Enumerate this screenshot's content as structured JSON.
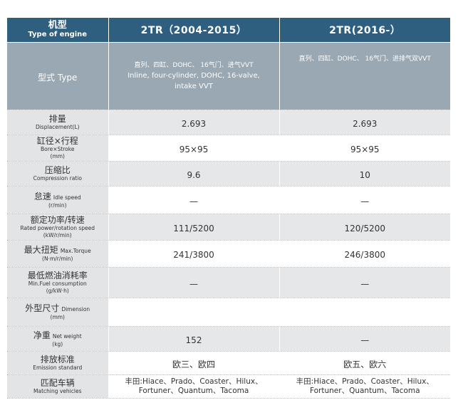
{
  "header": {
    "label_zh": "机型",
    "label_en": "Type of engine",
    "model_a": "2TR（2004-2015）",
    "model_b": "2TR(2016-）"
  },
  "type_row": {
    "label": "型式 Type",
    "a_zh": "直列、四缸、DOHC、 16气门、进气VVT",
    "a_en_1": "Inline, four-cylinder, DOHC, 16-valve,",
    "a_en_2": "intake VVT",
    "b_zh": "直列、四缸、DOHC、 16气门、进排气双VVT"
  },
  "rows": [
    {
      "zh": "排量",
      "en_inline": "",
      "en": "Displacement(L)",
      "unit": "",
      "a": "2.693",
      "b": "2.693"
    },
    {
      "zh": "缸径×行程",
      "en_inline": "",
      "en": "Bore×Stroke",
      "unit": "(mm)",
      "a": "95×95",
      "b": "95×95"
    },
    {
      "zh": "压缩比",
      "en_inline": "",
      "en": "Compression ratio",
      "unit": "",
      "a": "9.6",
      "b": "10"
    },
    {
      "zh": "怠速",
      "en_inline": "Idle speed",
      "en": "",
      "unit": "(r/min)",
      "a": "—",
      "b": "—"
    },
    {
      "zh": "额定功率/转速",
      "en_inline": "",
      "en": "Rated power/rotation speed",
      "unit": "(kW/r/min)",
      "a": "111/5200",
      "b": "120/5200"
    },
    {
      "zh": "最大扭矩",
      "en_inline": "Max.Torque",
      "en": "",
      "unit": "(N·m/r/min)",
      "a": "241/3800",
      "b": "246/3800"
    },
    {
      "zh": "最低燃油消耗率",
      "en_inline": "",
      "en": "Min.Fuel consumption",
      "unit": "(g/kW·h)",
      "a": "—",
      "b": "—"
    },
    {
      "zh": "外型尺寸",
      "en_inline": "Dimension",
      "en": "",
      "unit": "(mm)",
      "a": "",
      "b": ""
    },
    {
      "zh": "净重",
      "en_inline": "Net weight",
      "en": "",
      "unit": "(kg)",
      "a": "152",
      "b": "—"
    },
    {
      "zh": "排放标准",
      "en_inline": "",
      "en": "Emission standard",
      "unit": "",
      "a": "欧三、欧四",
      "b": "欧五、欧六"
    }
  ],
  "vehicles": {
    "zh": "匹配车辆",
    "en": "Matching vehicles",
    "a_1": "丰田:Hiace、Prado、Coaster、Hilux、",
    "a_2": "Fortuner、Quantum、Tacoma",
    "b_1": "丰田:Hiace、Prado、Coaster、Hilux、",
    "b_2": "Fortuner、Quantum、Tacoma"
  }
}
